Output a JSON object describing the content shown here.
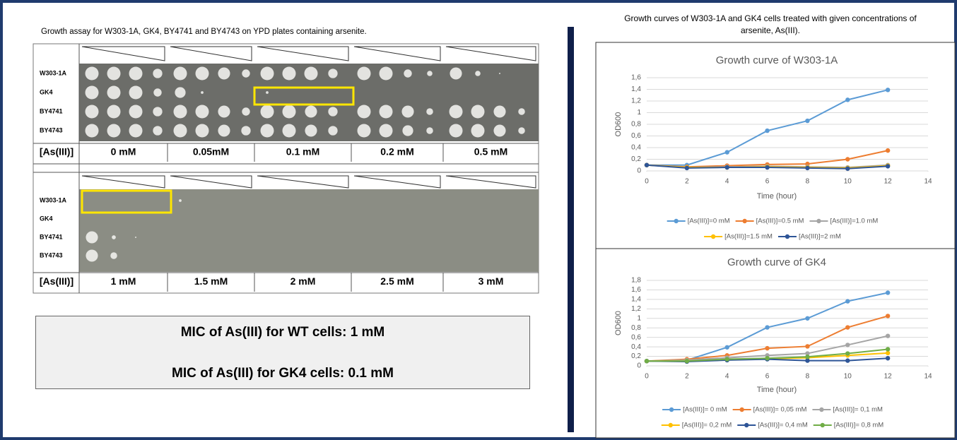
{
  "left": {
    "title": "Growth assay for W303-1A, GK4, BY4741 and BY4743 on YPD plates containing arsenite.",
    "rows": [
      "W303-1A",
      "GK4",
      "BY4741",
      "BY4743"
    ],
    "conc_label": "[As(III)]",
    "concentrations_top": [
      "0 mM",
      "0.05mM",
      "0.1 mM",
      "0.2 mM",
      "0.5 mM"
    ],
    "concentrations_bottom": [
      "1 mM",
      "1.5 mM",
      "2 mM",
      "2.5 mM",
      "3 mM"
    ],
    "mic": [
      "MIC of As(III) for WT cells: 1 mM",
      "MIC of As(III) for GK4 cells: 0.1 mM"
    ]
  },
  "right": {
    "title": "Growth curves of W303-1A and GK4 cells treated with given concentrations of arsenite, As(III)."
  },
  "chart_data": [
    {
      "type": "line",
      "title": "Growth curve of W303-1A",
      "xlabel": "Time (hour)",
      "ylabel": "OD600",
      "x": [
        0,
        2,
        4,
        6,
        8,
        10,
        12
      ],
      "xlim": [
        0,
        14
      ],
      "xticks": [
        0,
        2,
        4,
        6,
        8,
        10,
        12,
        14
      ],
      "ylim": [
        0,
        1.6
      ],
      "yticks": [
        0,
        {
          "value": 0.2,
          "label": "0,2"
        },
        {
          "value": 0.4,
          "label": "0,4"
        },
        {
          "value": 0.6,
          "label": "0,6"
        },
        {
          "value": 0.8,
          "label": "0,8"
        },
        1,
        {
          "value": 1.2,
          "label": "1,2"
        },
        {
          "value": 1.4,
          "label": "1,4"
        },
        {
          "value": 1.6,
          "label": "1,6"
        }
      ],
      "grid": true,
      "series": [
        {
          "name": "[As(III)]=0 mM",
          "color": "#5b9bd5",
          "values": [
            0.1,
            0.1,
            0.32,
            0.69,
            0.86,
            1.22,
            1.39
          ]
        },
        {
          "name": "[As(III)]=0.5 mM",
          "color": "#ed7d31",
          "values": [
            0.1,
            0.07,
            0.09,
            0.11,
            0.12,
            0.2,
            0.35
          ]
        },
        {
          "name": "[As(III)]=1.0 mM",
          "color": "#a5a5a5",
          "values": [
            0.1,
            0.06,
            0.07,
            0.08,
            0.07,
            0.06,
            0.1
          ]
        },
        {
          "name": "[As(III)]=1.5 mM",
          "color": "#ffc000",
          "values": [
            0.1,
            0.06,
            0.06,
            0.07,
            0.06,
            0.05,
            0.09
          ]
        },
        {
          "name": "[As(III)]=2 mM",
          "color": "#2e5597",
          "values": [
            0.1,
            0.05,
            0.06,
            0.06,
            0.05,
            0.04,
            0.08
          ]
        }
      ]
    },
    {
      "type": "line",
      "title": "Growth curve of GK4",
      "xlabel": "Time (hour)",
      "ylabel": "OD600",
      "x": [
        0,
        2,
        4,
        6,
        8,
        10,
        12
      ],
      "xlim": [
        0,
        14
      ],
      "xticks": [
        0,
        2,
        4,
        6,
        8,
        10,
        12,
        14
      ],
      "ylim": [
        0,
        1.8
      ],
      "yticks": [
        0,
        {
          "value": 0.2,
          "label": "0,2"
        },
        {
          "value": 0.4,
          "label": "0,4"
        },
        {
          "value": 0.6,
          "label": "0,6"
        },
        {
          "value": 0.8,
          "label": "0,8"
        },
        1,
        {
          "value": 1.2,
          "label": "1,2"
        },
        {
          "value": 1.4,
          "label": "1,4"
        },
        {
          "value": 1.6,
          "label": "1,6"
        },
        {
          "value": 1.8,
          "label": "1,8"
        }
      ],
      "grid": true,
      "series": [
        {
          "name": "[As(III)]= 0 mM",
          "color": "#5b9bd5",
          "values": [
            0.1,
            0.12,
            0.39,
            0.81,
            1.0,
            1.36,
            1.54
          ]
        },
        {
          "name": "[As(III)]= 0,05 mM",
          "color": "#ed7d31",
          "values": [
            0.1,
            0.14,
            0.22,
            0.37,
            0.41,
            0.81,
            1.05
          ]
        },
        {
          "name": "[As(III)]= 0,1 mM",
          "color": "#a5a5a5",
          "values": [
            0.1,
            0.12,
            0.17,
            0.22,
            0.26,
            0.44,
            0.63
          ]
        },
        {
          "name": "[As(III)]= 0,2 mM",
          "color": "#ffc000",
          "values": [
            0.1,
            0.1,
            0.13,
            0.15,
            0.17,
            0.22,
            0.27
          ]
        },
        {
          "name": "[As(III)]= 0,4 mM",
          "color": "#2e5597",
          "values": [
            0.1,
            0.09,
            0.12,
            0.14,
            0.11,
            0.11,
            0.16
          ]
        },
        {
          "name": "[As(III)]= 0,8 mM",
          "color": "#70ad47",
          "values": [
            0.1,
            0.1,
            0.14,
            0.16,
            0.19,
            0.26,
            0.35
          ]
        }
      ]
    }
  ]
}
